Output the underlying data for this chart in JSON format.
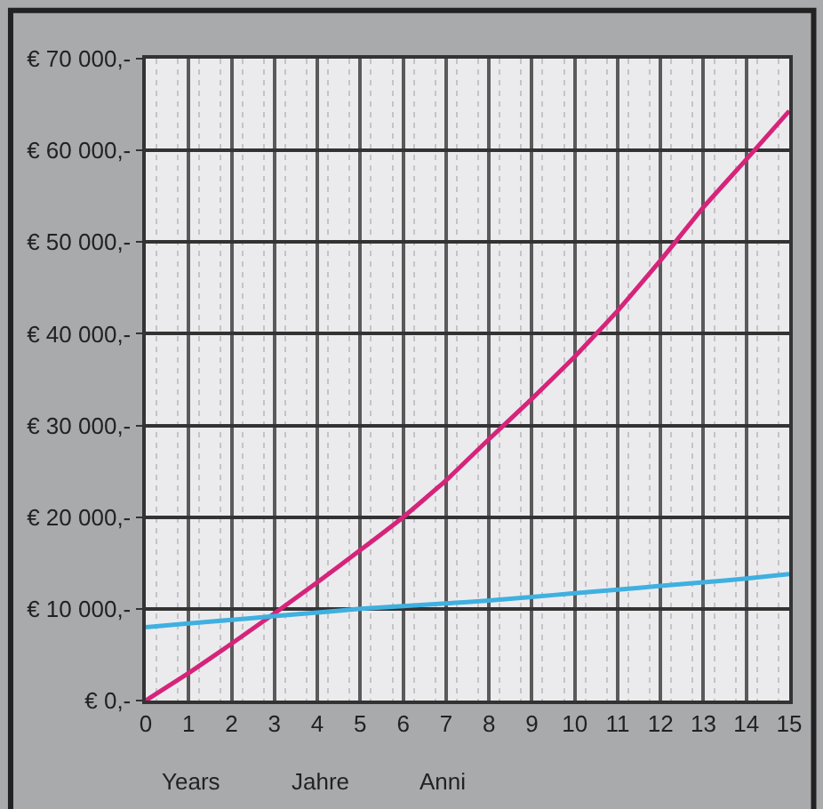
{
  "chart_data": {
    "type": "line",
    "x": [
      0,
      1,
      2,
      3,
      4,
      5,
      6,
      7,
      8,
      9,
      10,
      11,
      12,
      13,
      14,
      15
    ],
    "series": [
      {
        "color": "#d6247a",
        "values": [
          0,
          3000,
          6200,
          9500,
          12900,
          16400,
          20000,
          24000,
          28500,
          32900,
          37500,
          42500,
          48000,
          53800,
          59000,
          64300
        ]
      },
      {
        "color": "#3fb0e0",
        "values": [
          8000,
          8400,
          8800,
          9200,
          9600,
          10000,
          10300,
          10600,
          10900,
          11300,
          11700,
          12100,
          12500,
          12900,
          13300,
          13800
        ]
      }
    ],
    "xlim": [
      0,
      15
    ],
    "xticks": [
      0,
      1,
      2,
      3,
      4,
      5,
      6,
      7,
      8,
      9,
      10,
      11,
      12,
      13,
      14,
      15
    ],
    "ylim": [
      0,
      70000
    ],
    "yticks": [
      {
        "value": 0,
        "label": "€ 0,-"
      },
      {
        "value": 10000,
        "label": "€ 10 000,-"
      },
      {
        "value": 20000,
        "label": "€ 20 000,-"
      },
      {
        "value": 30000,
        "label": "€ 30 000,-"
      },
      {
        "value": 40000,
        "label": "€ 40 000,-"
      },
      {
        "value": 50000,
        "label": "€ 50 000,-"
      },
      {
        "value": 60000,
        "label": "€ 60 000,-"
      },
      {
        "value": 70000,
        "label": "€ 70 000,-"
      }
    ],
    "grid": true,
    "annotations": [
      "Years",
      "Jahre",
      "Anni"
    ]
  }
}
